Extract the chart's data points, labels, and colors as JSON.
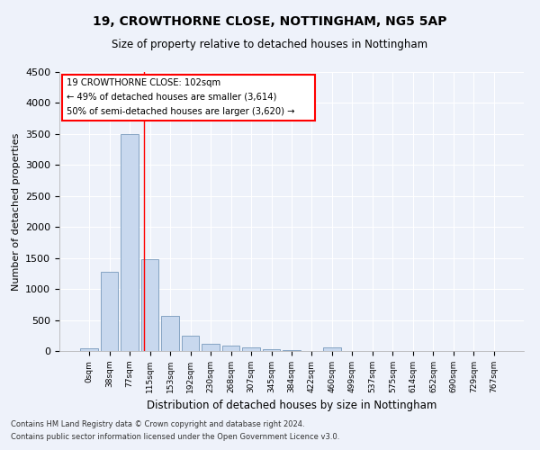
{
  "title1": "19, CROWTHORNE CLOSE, NOTTINGHAM, NG5 5AP",
  "title2": "Size of property relative to detached houses in Nottingham",
  "xlabel": "Distribution of detached houses by size in Nottingham",
  "ylabel": "Number of detached properties",
  "bar_color": "#c8d8ee",
  "bar_edge_color": "#7799bb",
  "categories": [
    "0sqm",
    "38sqm",
    "77sqm",
    "115sqm",
    "153sqm",
    "192sqm",
    "230sqm",
    "268sqm",
    "307sqm",
    "345sqm",
    "384sqm",
    "422sqm",
    "460sqm",
    "499sqm",
    "537sqm",
    "575sqm",
    "614sqm",
    "652sqm",
    "690sqm",
    "729sqm",
    "767sqm"
  ],
  "values": [
    40,
    1280,
    3500,
    1480,
    570,
    240,
    115,
    80,
    55,
    35,
    20,
    0,
    55,
    0,
    0,
    0,
    0,
    0,
    0,
    0,
    0
  ],
  "ylim": [
    0,
    4500
  ],
  "yticks": [
    0,
    500,
    1000,
    1500,
    2000,
    2500,
    3000,
    3500,
    4000,
    4500
  ],
  "vline_x": 2.73,
  "annotation_line1": "19 CROWTHORNE CLOSE: 102sqm",
  "annotation_line2": "← 49% of detached houses are smaller (3,614)",
  "annotation_line3": "50% of semi-detached houses are larger (3,620) →",
  "footer1": "Contains HM Land Registry data © Crown copyright and database right 2024.",
  "footer2": "Contains public sector information licensed under the Open Government Licence v3.0.",
  "background_color": "#eef2fa",
  "grid_color": "#ffffff"
}
